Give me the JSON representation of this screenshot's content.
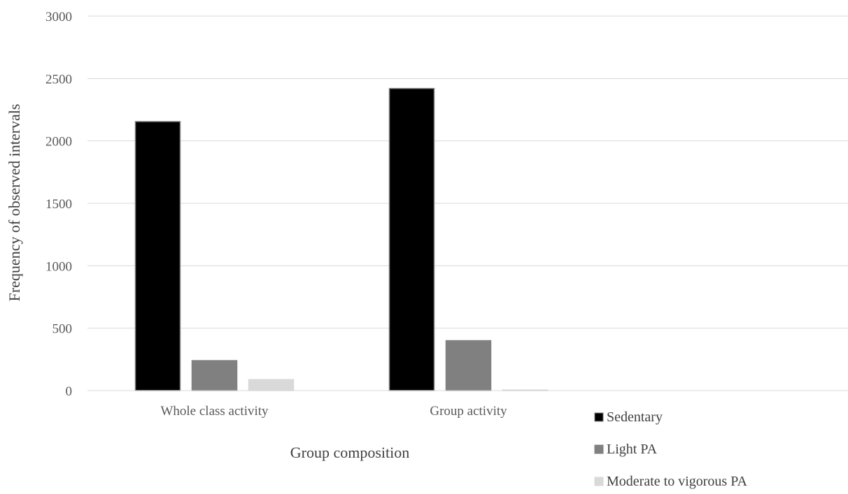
{
  "chart_data": {
    "type": "bar",
    "title": "",
    "xlabel": "Group composition",
    "ylabel": "Frequency of  observed intervals",
    "categories": [
      "Whole class activity",
      "Group activity"
    ],
    "series": [
      {
        "name": "Sedentary",
        "values": [
          2155,
          2420
        ],
        "color": "#000000",
        "stroke": "#7f7f7f"
      },
      {
        "name": "Light PA",
        "values": [
          240,
          400
        ],
        "color": "#808080",
        "stroke": "#808080"
      },
      {
        "name": "Moderate to vigorous PA",
        "values": [
          88,
          5
        ],
        "color": "#d9d9d9",
        "stroke": "#d9d9d9"
      }
    ],
    "ylim": [
      0,
      3000
    ],
    "yticks": [
      0,
      500,
      1000,
      1500,
      2000,
      2500,
      3000
    ],
    "grid": true,
    "legend": "bottom-right"
  }
}
